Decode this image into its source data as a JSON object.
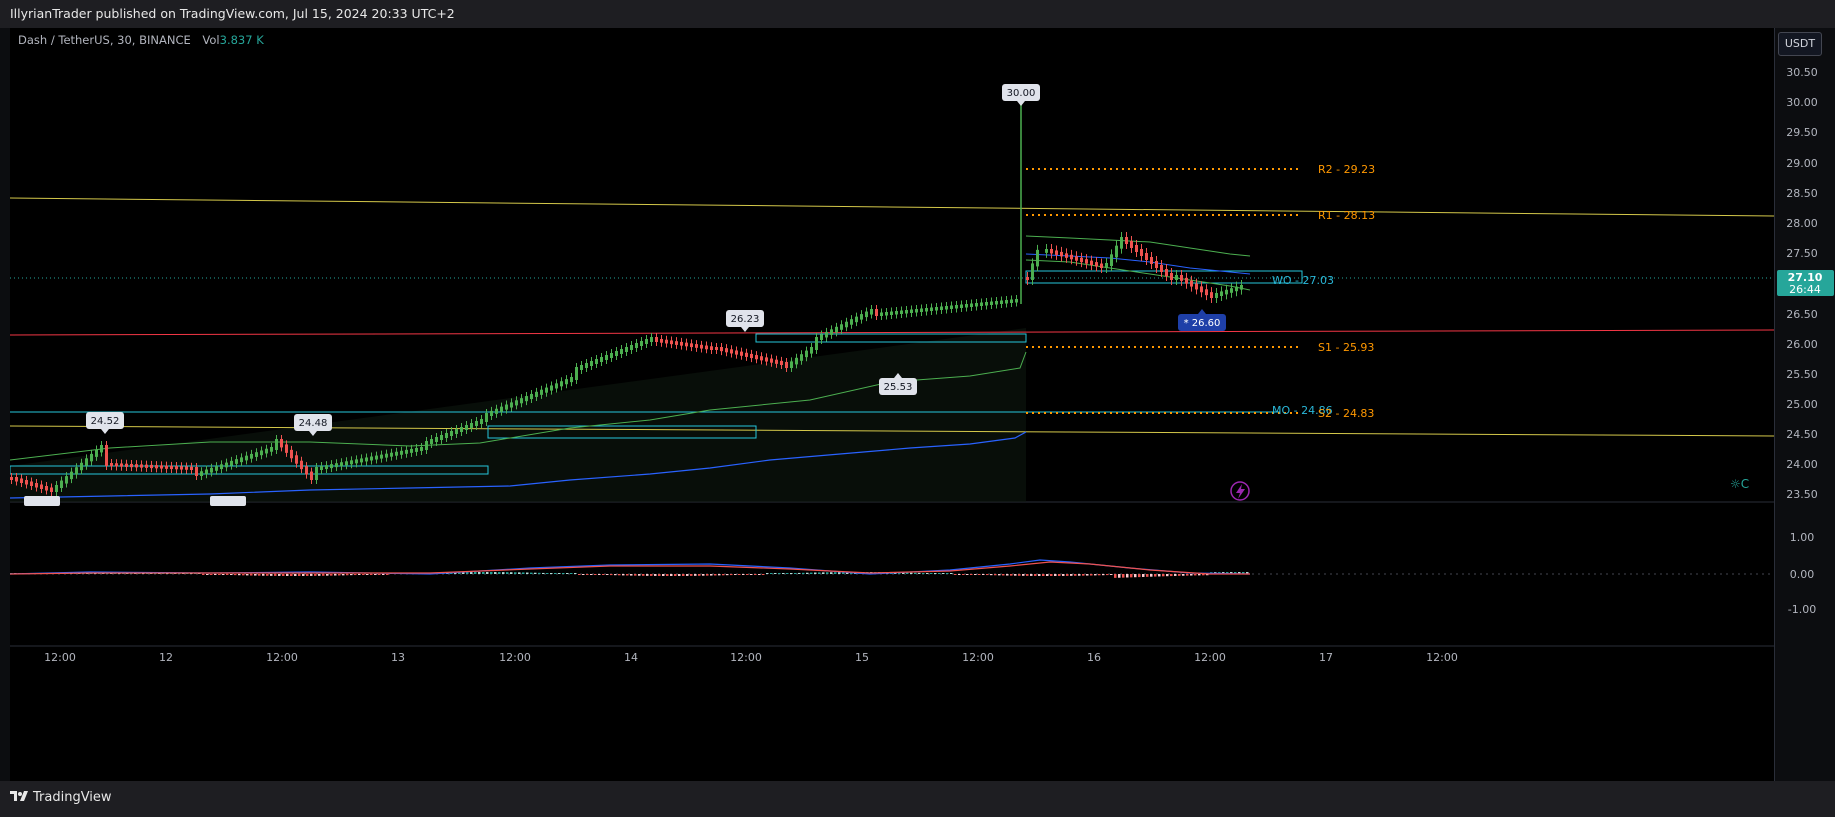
{
  "header": {
    "title": "IllyrianTrader published on TradingView.com, Jul 15, 2024 20:33 UTC+2"
  },
  "legend": {
    "symbol": "Dash / TetherUS, 30, BINANCE",
    "vol_label": "Vol",
    "vol_value": "3.837 K"
  },
  "currency_button": "USDT",
  "price_axis": {
    "labels": [
      "30.50",
      "30.00",
      "29.50",
      "29.00",
      "28.50",
      "28.00",
      "27.50",
      "26.50",
      "26.00",
      "25.50",
      "25.00",
      "24.50",
      "24.00",
      "23.50"
    ],
    "current_price": "27.10",
    "countdown": "26:44"
  },
  "indicator_axis": {
    "labels": [
      "1.00",
      "0.00",
      "-1.00"
    ]
  },
  "time_axis": {
    "labels": [
      "12:00",
      "12",
      "12:00",
      "13",
      "12:00",
      "14",
      "12:00",
      "15",
      "12:00",
      "16",
      "12:00",
      "17",
      "12:00"
    ]
  },
  "pivots": {
    "r2": "R2 - 29.23",
    "r1": "R1 - 28.13",
    "wo": "WO - 27.03",
    "s1": "S1 - 25.93",
    "mo": "MO - 24.86",
    "s2": "S2 - 24.83"
  },
  "callouts": {
    "high": "30.00",
    "c1": "26.23",
    "c2": "24.52",
    "c3": "24.48",
    "c4": "25.53",
    "low": "* 26.60"
  },
  "footer": {
    "brand": "TradingView"
  },
  "colors": {
    "up": "#26a69a",
    "down": "#ef5350",
    "candle_up": "#4caf50",
    "pivot": "#ff9800",
    "wo": "#2ab7d8",
    "trend_yellow": "#d4c84a",
    "trend_red": "#f23645",
    "hline_cyan": "#26c6da",
    "vwap_blue": "#2962ff"
  }
}
